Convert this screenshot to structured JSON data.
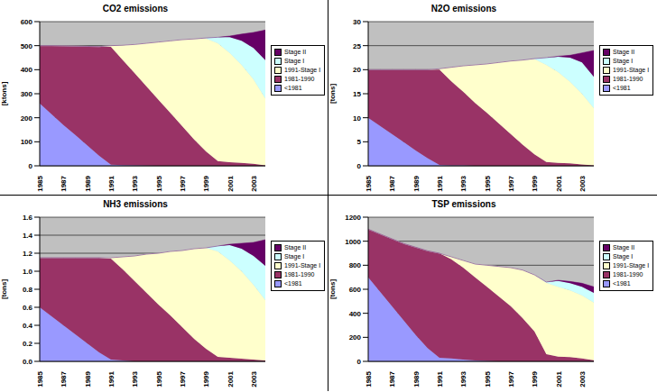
{
  "chart_data": [
    {
      "type": "area",
      "title": "CO2 emissions",
      "y_label": "[ktons]",
      "stacked": true,
      "grid": true,
      "legend": "right",
      "categories": [
        "1985",
        null,
        "1987",
        null,
        "1989",
        null,
        "1991",
        null,
        "1993",
        null,
        "1995",
        null,
        "1997",
        null,
        "1999",
        null,
        "2001",
        null,
        "2003",
        null
      ],
      "ylim": [
        0,
        600
      ],
      "yticks": [
        0,
        100,
        200,
        300,
        400,
        500,
        600
      ],
      "series": [
        {
          "name": "<1981",
          "color": "#9999FF",
          "values": [
            260,
            215,
            170,
            128,
            85,
            42,
            5,
            3,
            2,
            1,
            0,
            0,
            0,
            0,
            0,
            0,
            0,
            0,
            0,
            0
          ]
        },
        {
          "name": "1981-1990",
          "color": "#993366",
          "values": [
            240,
            285,
            329,
            370,
            412,
            454,
            490,
            437,
            383,
            329,
            275,
            220,
            165,
            110,
            60,
            20,
            15,
            12,
            8,
            2
          ]
        },
        {
          "name": "1991-Stage I",
          "color": "#FFFFCC",
          "values": [
            0,
            0,
            0,
            0,
            0,
            0,
            5,
            62,
            120,
            180,
            240,
            300,
            360,
            418,
            470,
            490,
            455,
            408,
            352,
            278
          ]
        },
        {
          "name": "Stage I",
          "color": "#CCFFFF",
          "values": [
            0,
            0,
            0,
            0,
            0,
            0,
            0,
            0,
            0,
            0,
            0,
            0,
            0,
            0,
            2,
            25,
            65,
            100,
            130,
            160
          ]
        },
        {
          "name": "Stage II",
          "color": "#660066",
          "values": [
            0,
            0,
            0,
            0,
            0,
            0,
            0,
            0,
            0,
            0,
            0,
            0,
            0,
            0,
            0,
            0,
            5,
            28,
            65,
            125
          ]
        }
      ]
    },
    {
      "type": "area",
      "title": "N2O emissions",
      "y_label": "[tons]",
      "stacked": true,
      "grid": true,
      "legend": "right",
      "categories": [
        "1985",
        null,
        "1987",
        null,
        "1989",
        null,
        "1991",
        null,
        "1993",
        null,
        "1995",
        null,
        "1997",
        null,
        "1999",
        null,
        "2001",
        null,
        "2003",
        null
      ],
      "ylim": [
        0,
        30
      ],
      "yticks": [
        0,
        5,
        10,
        15,
        20,
        25,
        30
      ],
      "series": [
        {
          "name": "<1981",
          "color": "#9999FF",
          "values": [
            10,
            8.3,
            6.6,
            4.9,
            3.2,
            1.6,
            0.2,
            0.1,
            0.1,
            0,
            0,
            0,
            0,
            0,
            0,
            0,
            0,
            0,
            0,
            0
          ]
        },
        {
          "name": "1981-1990",
          "color": "#993366",
          "values": [
            10,
            11.7,
            13.4,
            15.1,
            16.8,
            18.4,
            19.8,
            17.5,
            15.3,
            13.1,
            11,
            8.8,
            6.6,
            4.4,
            2.4,
            0.8,
            0.6,
            0.5,
            0.3,
            0.1
          ]
        },
        {
          "name": "1991-Stage I",
          "color": "#FFFFCC",
          "values": [
            0,
            0,
            0,
            0,
            0,
            0,
            0.2,
            2.9,
            5.4,
            7.9,
            10.2,
            12.7,
            15.2,
            17.6,
            19.8,
            20.2,
            18.9,
            17,
            14.7,
            11.9
          ]
        },
        {
          "name": "Stage I",
          "color": "#CCFFFF",
          "values": [
            0,
            0,
            0,
            0,
            0,
            0,
            0,
            0,
            0,
            0,
            0,
            0,
            0,
            0,
            0.1,
            1.5,
            3.2,
            5,
            6.5,
            6.5
          ]
        },
        {
          "name": "Stage II",
          "color": "#660066",
          "values": [
            0,
            0,
            0,
            0,
            0,
            0,
            0,
            0,
            0,
            0,
            0,
            0,
            0,
            0,
            0,
            0,
            0.1,
            0.5,
            2,
            5.5
          ]
        }
      ]
    },
    {
      "type": "area",
      "title": "NH3 emissions",
      "y_label": "[tons]",
      "stacked": true,
      "grid": true,
      "legend": "right",
      "categories": [
        "1985",
        null,
        "1987",
        null,
        "1989",
        null,
        "1991",
        null,
        "1993",
        null,
        "1995",
        null,
        "1997",
        null,
        "1999",
        null,
        "2001",
        null,
        "2003",
        null
      ],
      "ylim": [
        0,
        1.6
      ],
      "yticks": [
        {
          "value": 0,
          "label": "0.0"
        },
        0.2,
        0.4,
        0.6,
        0.8,
        {
          "value": 1,
          "label": "1.0"
        },
        1.2,
        1.4,
        1.6
      ],
      "series": [
        {
          "name": "<1981",
          "color": "#9999FF",
          "values": [
            0.6,
            0.5,
            0.4,
            0.3,
            0.2,
            0.1,
            0.02,
            0.01,
            0,
            0,
            0,
            0,
            0,
            0,
            0,
            0,
            0,
            0,
            0,
            0
          ]
        },
        {
          "name": "1981-1990",
          "color": "#993366",
          "values": [
            0.55,
            0.65,
            0.75,
            0.85,
            0.95,
            1.05,
            1.12,
            1.01,
            0.89,
            0.76,
            0.63,
            0.51,
            0.38,
            0.25,
            0.14,
            0.05,
            0.04,
            0.03,
            0.02,
            0.01
          ]
        },
        {
          "name": "1991-Stage I",
          "color": "#FFFFCC",
          "values": [
            0,
            0,
            0,
            0,
            0,
            0,
            0.01,
            0.14,
            0.28,
            0.43,
            0.57,
            0.71,
            0.85,
            1.0,
            1.12,
            1.17,
            1.08,
            0.97,
            0.83,
            0.67
          ]
        },
        {
          "name": "Stage I",
          "color": "#CCFFFF",
          "values": [
            0,
            0,
            0,
            0,
            0,
            0,
            0,
            0,
            0,
            0,
            0,
            0,
            0,
            0,
            0,
            0.06,
            0.17,
            0.25,
            0.32,
            0.38
          ]
        },
        {
          "name": "Stage II",
          "color": "#660066",
          "values": [
            0,
            0,
            0,
            0,
            0,
            0,
            0,
            0,
            0,
            0,
            0,
            0,
            0,
            0,
            0,
            0,
            0.01,
            0.06,
            0.15,
            0.29
          ]
        }
      ]
    },
    {
      "type": "area",
      "title": "TSP emissions",
      "y_label": "[tons]",
      "stacked": true,
      "grid": true,
      "legend": "right",
      "categories": [
        "1985",
        null,
        "1987",
        null,
        "1989",
        null,
        "1991",
        null,
        "1993",
        null,
        "1995",
        null,
        "1997",
        null,
        "1999",
        null,
        "2001",
        null,
        "2003",
        null
      ],
      "ylim": [
        0,
        1200
      ],
      "yticks": [
        0,
        200,
        400,
        600,
        800,
        1000,
        1200
      ],
      "series": [
        {
          "name": "<1981",
          "color": "#9999FF",
          "values": [
            700,
            580,
            460,
            340,
            220,
            110,
            30,
            25,
            15,
            8,
            3,
            0,
            0,
            0,
            0,
            0,
            0,
            0,
            0,
            0
          ]
        },
        {
          "name": "1981-1990",
          "color": "#993366",
          "values": [
            400,
            480,
            560,
            640,
            730,
            810,
            870,
            825,
            765,
            692,
            617,
            540,
            460,
            360,
            250,
            60,
            40,
            35,
            25,
            10
          ]
        },
        {
          "name": "1991-Stage I",
          "color": "#FFFFCC",
          "values": [
            0,
            0,
            0,
            0,
            0,
            0,
            0,
            20,
            60,
            110,
            180,
            250,
            320,
            400,
            470,
            595,
            580,
            555,
            525,
            480
          ]
        },
        {
          "name": "Stage I",
          "color": "#CCFFFF",
          "values": [
            0,
            0,
            0,
            0,
            0,
            0,
            0,
            0,
            0,
            0,
            0,
            0,
            0,
            0,
            0,
            5,
            50,
            60,
            70,
            80
          ]
        },
        {
          "name": "Stage II",
          "color": "#660066",
          "values": [
            0,
            0,
            0,
            0,
            0,
            0,
            0,
            0,
            0,
            0,
            0,
            0,
            0,
            0,
            0,
            0,
            5,
            15,
            30,
            50
          ]
        }
      ]
    }
  ]
}
